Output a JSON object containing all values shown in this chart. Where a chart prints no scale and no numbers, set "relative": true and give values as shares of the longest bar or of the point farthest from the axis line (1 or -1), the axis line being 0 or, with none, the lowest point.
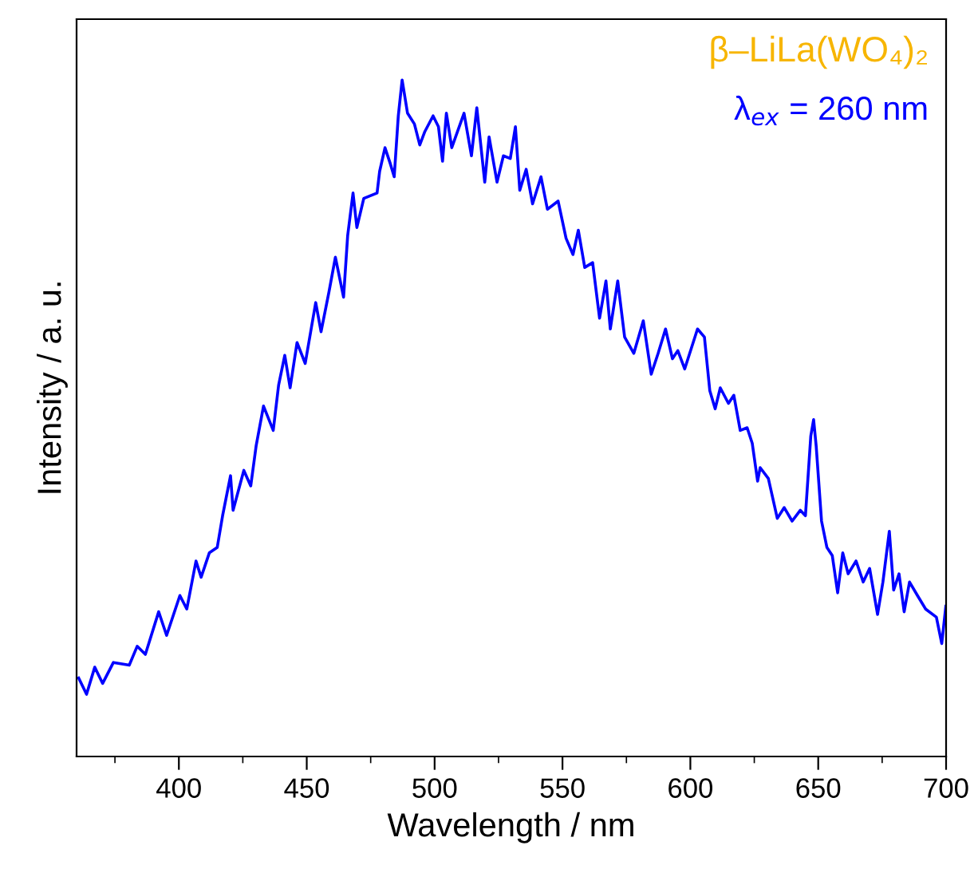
{
  "chart_data": {
    "type": "line",
    "xlabel": "Wavelength / nm",
    "ylabel": "Intensity / a. u.",
    "annotations": [
      "β–LiLa(WO₄)₂",
      "λ$_{ex}$ = 260 nm"
    ],
    "relative": true,
    "xlim": [
      360,
      700
    ],
    "xticks": [
      400,
      450,
      500,
      550,
      600,
      650,
      700
    ],
    "tick_labels": "x",
    "grid": false,
    "legend": false,
    "marker": "none",
    "line_style": "solid",
    "series": [
      {
        "color": "#0000ff",
        "x": [
          360.8,
          363.9,
          367.1,
          370.2,
          374.4,
          380.6,
          383.7,
          386.9,
          392.1,
          395.2,
          400.4,
          403.1,
          406.7,
          408.7,
          411.9,
          415,
          417.1,
          420.2,
          421.2,
          425.4,
          428.1,
          430.2,
          433.1,
          436.9,
          439,
          441.4,
          443.5,
          446.2,
          449.4,
          453.5,
          455.6,
          458.7,
          461.2,
          464.4,
          466,
          468.1,
          469.6,
          472.3,
          477.5,
          478.5,
          480.6,
          482.7,
          484.2,
          485.8,
          487.3,
          489.4,
          492.1,
          494.2,
          496.2,
          499.4,
          501.5,
          503.1,
          504.6,
          506.7,
          511.5,
          514.4,
          516.5,
          519.6,
          521.3,
          524.4,
          526.9,
          529.6,
          531.6,
          533.3,
          535.8,
          538.3,
          541.6,
          544.1,
          548.3,
          551.4,
          554.1,
          556.2,
          558.7,
          561.8,
          564.5,
          567,
          568.7,
          571.6,
          574.3,
          577.9,
          581.6,
          584.7,
          587.4,
          590.3,
          593,
          595.1,
          597.8,
          602.8,
          605.5,
          607.6,
          609.7,
          611.7,
          614.9,
          617,
          619.5,
          622.2,
          624.2,
          626.3,
          627.3,
          630.5,
          634,
          636.7,
          639.8,
          643,
          645,
          647.1,
          648.2,
          649.2,
          651.3,
          653.4,
          655.5,
          657.6,
          659.6,
          661.7,
          664.8,
          667.6,
          670.1,
          673.2,
          675.3,
          677.8,
          679.5,
          681.6,
          683.6,
          685.7,
          688.8,
          692,
          696.2,
          698.3,
          699.9
        ],
        "values": [
          0.116,
          0.092,
          0.132,
          0.108,
          0.139,
          0.135,
          0.163,
          0.151,
          0.214,
          0.179,
          0.238,
          0.218,
          0.289,
          0.265,
          0.301,
          0.309,
          0.356,
          0.415,
          0.364,
          0.423,
          0.4,
          0.459,
          0.518,
          0.482,
          0.549,
          0.593,
          0.545,
          0.612,
          0.581,
          0.671,
          0.628,
          0.687,
          0.738,
          0.679,
          0.77,
          0.833,
          0.782,
          0.825,
          0.833,
          0.865,
          0.9,
          0.876,
          0.857,
          0.947,
          1,
          0.951,
          0.935,
          0.904,
          0.924,
          0.947,
          0.931,
          0.88,
          0.951,
          0.9,
          0.951,
          0.888,
          0.959,
          0.849,
          0.916,
          0.849,
          0.888,
          0.884,
          0.931,
          0.837,
          0.868,
          0.817,
          0.857,
          0.809,
          0.821,
          0.766,
          0.742,
          0.778,
          0.723,
          0.73,
          0.648,
          0.703,
          0.632,
          0.703,
          0.62,
          0.596,
          0.644,
          0.565,
          0.596,
          0.632,
          0.588,
          0.6,
          0.573,
          0.632,
          0.62,
          0.541,
          0.514,
          0.545,
          0.522,
          0.534,
          0.482,
          0.486,
          0.463,
          0.407,
          0.427,
          0.411,
          0.352,
          0.368,
          0.348,
          0.364,
          0.356,
          0.474,
          0.498,
          0.459,
          0.348,
          0.309,
          0.297,
          0.242,
          0.301,
          0.27,
          0.289,
          0.258,
          0.278,
          0.21,
          0.258,
          0.333,
          0.246,
          0.27,
          0.214,
          0.258,
          0.238,
          0.218,
          0.206,
          0.167,
          0.222
        ]
      }
    ]
  }
}
